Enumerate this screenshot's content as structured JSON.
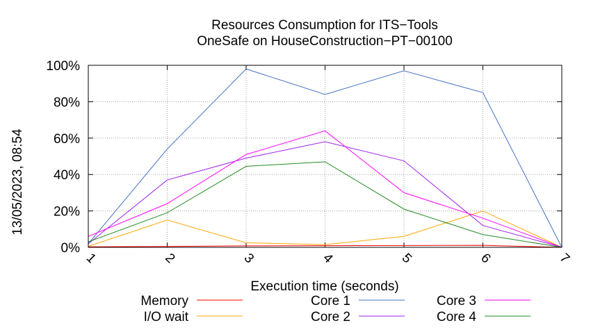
{
  "chart_data": {
    "type": "line",
    "title": "Resources Consumption for ITS−Tools",
    "subtitle": "OneSafe on HouseConstruction−PT−00100",
    "xlabel": "Execution time (seconds)",
    "ylabel": "",
    "side_label": "13/05/2023, 08:54",
    "x": [
      1,
      2,
      3,
      4,
      5,
      6,
      7
    ],
    "xlim": [
      1,
      7
    ],
    "ylim": [
      0,
      100
    ],
    "x_ticks": [
      "1",
      "2",
      "3",
      "4",
      "5",
      "6",
      "7"
    ],
    "y_ticks": [
      "0%",
      "20%",
      "40%",
      "60%",
      "80%",
      "100%"
    ],
    "y_tick_values": [
      0,
      20,
      40,
      60,
      80,
      100
    ],
    "grid": true,
    "legend_position": "bottom",
    "series": [
      {
        "name": "Memory",
        "color": "#ff0000",
        "values": [
          0.3,
          0.5,
          0.8,
          0.9,
          1.0,
          1.1,
          0
        ]
      },
      {
        "name": "I/O wait",
        "color": "#ffa500",
        "values": [
          0.5,
          15,
          2.5,
          1.5,
          6,
          20,
          0
        ]
      },
      {
        "name": "Core 1",
        "color": "#4472c4",
        "values": [
          2,
          54,
          98,
          84,
          97,
          85,
          0
        ]
      },
      {
        "name": "Core 2",
        "color": "#a020f0",
        "values": [
          2,
          37,
          49,
          58,
          47.5,
          12,
          0
        ]
      },
      {
        "name": "Core 3",
        "color": "#ff00ff",
        "values": [
          6,
          24,
          51,
          64,
          30,
          16,
          0
        ]
      },
      {
        "name": "Core 4",
        "color": "#228b22",
        "values": [
          3,
          19,
          44.5,
          47,
          21,
          7,
          0
        ]
      }
    ]
  }
}
